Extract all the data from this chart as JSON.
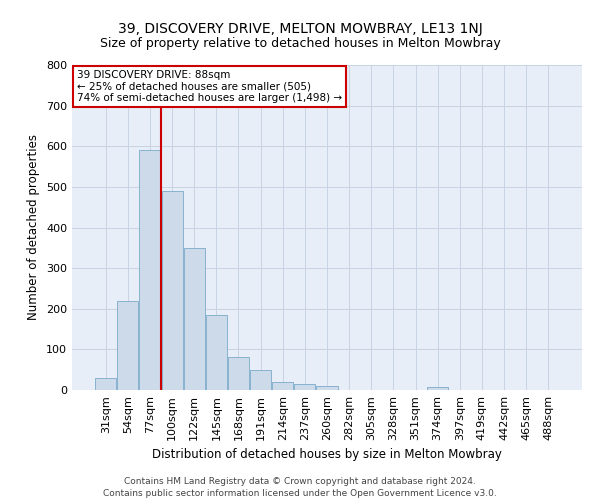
{
  "title": "39, DISCOVERY DRIVE, MELTON MOWBRAY, LE13 1NJ",
  "subtitle": "Size of property relative to detached houses in Melton Mowbray",
  "xlabel": "Distribution of detached houses by size in Melton Mowbray",
  "ylabel": "Number of detached properties",
  "categories": [
    "31sqm",
    "54sqm",
    "77sqm",
    "100sqm",
    "122sqm",
    "145sqm",
    "168sqm",
    "191sqm",
    "214sqm",
    "237sqm",
    "260sqm",
    "282sqm",
    "305sqm",
    "328sqm",
    "351sqm",
    "374sqm",
    "397sqm",
    "419sqm",
    "442sqm",
    "465sqm",
    "488sqm"
  ],
  "values": [
    30,
    220,
    590,
    490,
    350,
    185,
    82,
    50,
    20,
    15,
    10,
    0,
    0,
    0,
    0,
    7,
    0,
    0,
    0,
    0,
    0
  ],
  "bar_color": "#ccdaea",
  "bar_edgecolor": "#7aaac8",
  "annotation_text": "39 DISCOVERY DRIVE: 88sqm\n← 25% of detached houses are smaller (505)\n74% of semi-detached houses are larger (1,498) →",
  "annotation_box_color": "#ffffff",
  "annotation_box_edgecolor": "#cc0000",
  "redline_color": "#cc0000",
  "redline_x": 3.0,
  "ylim": [
    0,
    800
  ],
  "yticks": [
    0,
    100,
    200,
    300,
    400,
    500,
    600,
    700,
    800
  ],
  "grid_color": "#c8d4e4",
  "background_color": "#e8eef8",
  "footer_line1": "Contains HM Land Registry data © Crown copyright and database right 2024.",
  "footer_line2": "Contains public sector information licensed under the Open Government Licence v3.0.",
  "title_fontsize": 10,
  "subtitle_fontsize": 9,
  "xlabel_fontsize": 8.5,
  "ylabel_fontsize": 8.5,
  "tick_fontsize": 8,
  "footer_fontsize": 6.5,
  "annotation_fontsize": 7.5
}
